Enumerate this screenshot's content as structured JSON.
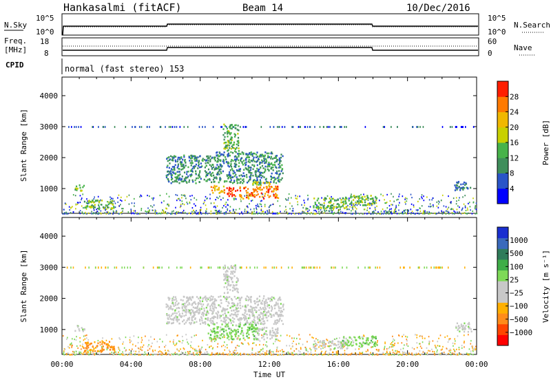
{
  "header": {
    "radar": "Hankasalmi (fitACF)",
    "beam": "Beam 14",
    "date": "10/Dec/2016"
  },
  "strip1": {
    "left_label": "N.Sky",
    "left_ticks": [
      "10^5",
      "10^0"
    ],
    "right_ticks": [
      "10^5",
      "10^0"
    ],
    "right_label": "N.Search"
  },
  "strip2": {
    "left_label_line1": "Freq.",
    "left_label_line2": "[MHz]",
    "left_ticks": [
      "18",
      "8"
    ],
    "right_ticks": [
      "60",
      "0"
    ],
    "right_label": "Nave"
  },
  "cpid": {
    "label": "CPID",
    "text": "normal (fast stereo) 153"
  },
  "chart_data": [
    {
      "type": "heatmap",
      "name": "power",
      "ylabel": "Slant Range [km]",
      "ylim": [
        200,
        4600
      ],
      "yticks": [
        1000,
        2000,
        3000,
        4000
      ],
      "xlim": [
        0,
        24
      ],
      "colorbar_label": "Power [dB]",
      "colorbar_ticks": [
        "28",
        "24",
        "20",
        "16",
        "12",
        "8",
        "4"
      ],
      "colorbar_colors": [
        "#0000ff",
        "#2a55c8",
        "#3f8e5b",
        "#47b34a",
        "#c8d000",
        "#f0b800",
        "#ff7a00",
        "#ff1e00"
      ],
      "regions": [
        {
          "t0": 0.7,
          "t1": 1.3,
          "r0": 950,
          "r1": 1150,
          "level": 3
        },
        {
          "t0": 1.2,
          "t1": 3.0,
          "r0": 380,
          "r1": 650,
          "level": 3
        },
        {
          "t0": 6.0,
          "t1": 8.8,
          "r0": 1200,
          "r1": 2100,
          "level": 2
        },
        {
          "t0": 8.8,
          "t1": 12.8,
          "r0": 1200,
          "r1": 2200,
          "level": 2
        },
        {
          "t0": 9.3,
          "t1": 10.2,
          "r0": 2200,
          "r1": 3100,
          "level": 3
        },
        {
          "t0": 8.5,
          "t1": 9.4,
          "r0": 880,
          "r1": 1120,
          "level": 5
        },
        {
          "t0": 9.5,
          "t1": 10.2,
          "r0": 780,
          "r1": 1080,
          "level": 7
        },
        {
          "t0": 10.2,
          "t1": 12.5,
          "r0": 700,
          "r1": 1100,
          "level": 6
        },
        {
          "t0": 11.0,
          "t1": 12.0,
          "r0": 1100,
          "r1": 1250,
          "level": 4
        },
        {
          "t0": 14.5,
          "t1": 16.5,
          "r0": 380,
          "r1": 720,
          "level": 3
        },
        {
          "t0": 16.2,
          "t1": 18.2,
          "r0": 480,
          "r1": 800,
          "level": 3
        },
        {
          "t0": 22.7,
          "t1": 23.7,
          "r0": 950,
          "r1": 1250,
          "level": 2
        }
      ],
      "line_3000km": {
        "t0": 0.2,
        "t1": 23.8,
        "r": 3000
      }
    },
    {
      "type": "heatmap",
      "name": "velocity",
      "ylabel": "Slant Range [km]",
      "ylim": [
        200,
        4600
      ],
      "yticks": [
        1000,
        2000,
        3000,
        4000
      ],
      "xlim": [
        0,
        24
      ],
      "xticks": [
        "00:00",
        "04:00",
        "08:00",
        "12:00",
        "16:00",
        "20:00",
        "00:00"
      ],
      "xlabel": "Time UT",
      "colorbar_label": "Velocity [m s⁻¹]",
      "colorbar_ticks": [
        "1000",
        "500",
        "100",
        "25",
        "−25",
        "−100",
        "−500",
        "−1000"
      ],
      "colorbar_colors": [
        "#ff0000",
        "#ff4500",
        "#ff8c1a",
        "#ffb000",
        "#c8c8c8",
        "#c8c8c8",
        "#7ed957",
        "#3fae48",
        "#2f7c5a",
        "#3a6abc",
        "#1a2fd0"
      ],
      "regions": [
        {
          "t0": 0.7,
          "t1": 1.3,
          "r0": 950,
          "r1": 1150,
          "class": "gray"
        },
        {
          "t0": 1.2,
          "t1": 3.0,
          "r0": 300,
          "r1": 650,
          "class": "orange"
        },
        {
          "t0": 6.0,
          "t1": 12.8,
          "r0": 1200,
          "r1": 2100,
          "class": "gray"
        },
        {
          "t0": 9.3,
          "t1": 10.2,
          "r0": 2200,
          "r1": 3100,
          "class": "gray"
        },
        {
          "t0": 8.4,
          "t1": 11.3,
          "r0": 700,
          "r1": 1200,
          "class": "green"
        },
        {
          "t0": 11.3,
          "t1": 12.5,
          "r0": 700,
          "r1": 1100,
          "class": "gray"
        },
        {
          "t0": 14.5,
          "t1": 16.5,
          "r0": 400,
          "r1": 700,
          "class": "gray"
        },
        {
          "t0": 16.2,
          "t1": 18.2,
          "r0": 480,
          "r1": 800,
          "class": "green"
        },
        {
          "t0": 22.7,
          "t1": 23.7,
          "r0": 950,
          "r1": 1250,
          "class": "gray"
        }
      ],
      "line_3000km": {
        "t0": 0.2,
        "t1": 23.8,
        "r": 3000
      }
    }
  ]
}
